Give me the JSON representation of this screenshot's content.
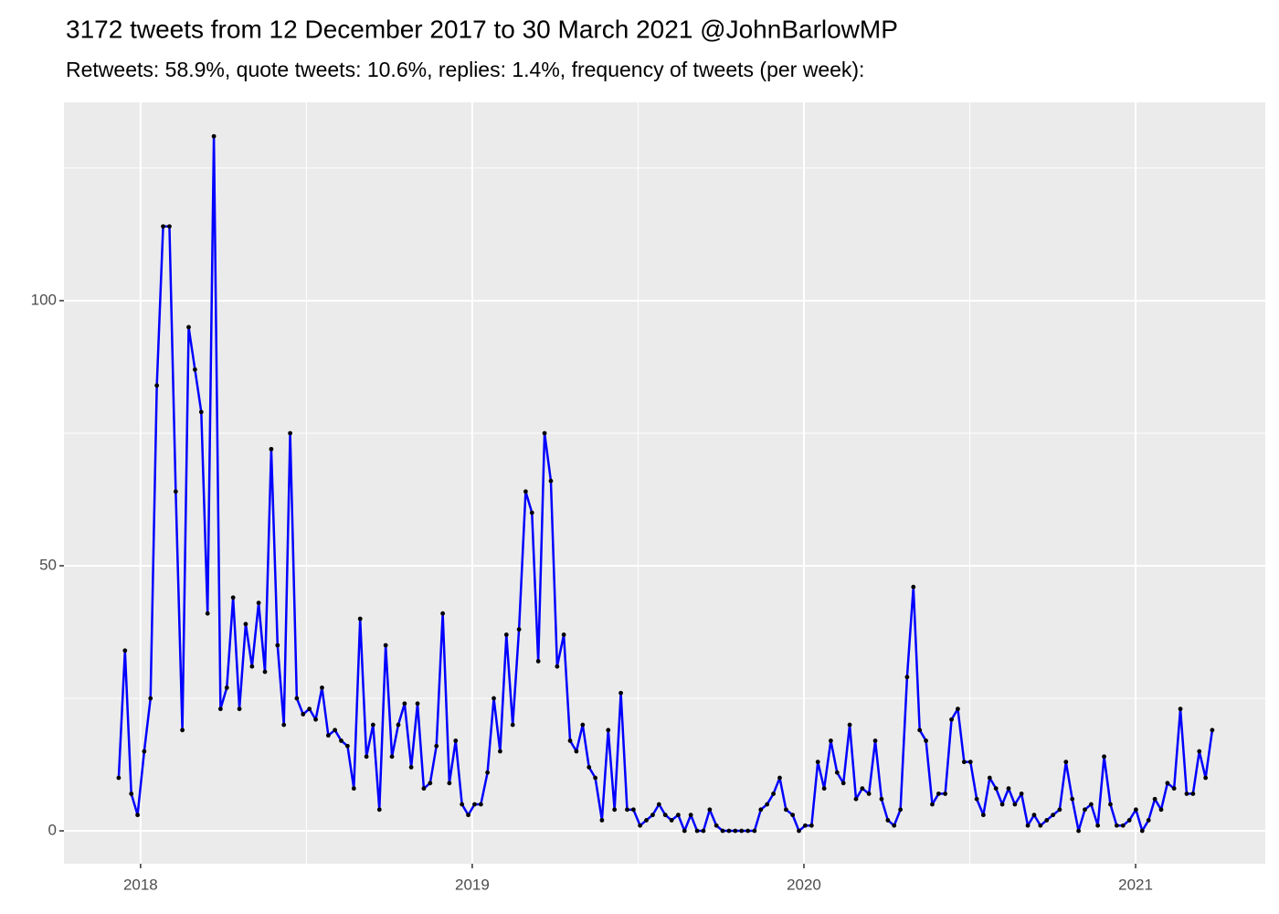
{
  "chart_data": {
    "type": "line",
    "title": "3172 tweets from 12 December 2017 to 30 March 2021 @JohnBarlowMP",
    "subtitle": "Retweets: 58.9%, quote tweets: 10.6%, replies: 1.4%, frequency of tweets (per week):",
    "x": [
      2017.934,
      2017.953,
      2017.972,
      2017.991,
      2018.011,
      2018.03,
      2018.049,
      2018.068,
      2018.087,
      2018.106,
      2018.126,
      2018.145,
      2018.164,
      2018.183,
      2018.202,
      2018.221,
      2018.241,
      2018.26,
      2018.279,
      2018.298,
      2018.317,
      2018.336,
      2018.356,
      2018.375,
      2018.394,
      2018.413,
      2018.432,
      2018.451,
      2018.471,
      2018.49,
      2018.509,
      2018.528,
      2018.547,
      2018.566,
      2018.586,
      2018.605,
      2018.624,
      2018.643,
      2018.662,
      2018.681,
      2018.701,
      2018.72,
      2018.739,
      2018.758,
      2018.777,
      2018.796,
      2018.816,
      2018.835,
      2018.854,
      2018.873,
      2018.892,
      2018.911,
      2018.931,
      2018.95,
      2018.969,
      2018.988,
      2019.007,
      2019.026,
      2019.046,
      2019.065,
      2019.084,
      2019.103,
      2019.122,
      2019.141,
      2019.161,
      2019.18,
      2019.199,
      2019.218,
      2019.237,
      2019.256,
      2019.276,
      2019.295,
      2019.314,
      2019.333,
      2019.352,
      2019.371,
      2019.391,
      2019.41,
      2019.429,
      2019.448,
      2019.467,
      2019.486,
      2019.506,
      2019.525,
      2019.544,
      2019.563,
      2019.582,
      2019.601,
      2019.621,
      2019.64,
      2019.659,
      2019.678,
      2019.697,
      2019.716,
      2019.736,
      2019.755,
      2019.774,
      2019.793,
      2019.812,
      2019.831,
      2019.851,
      2019.87,
      2019.889,
      2019.908,
      2019.927,
      2019.946,
      2019.966,
      2019.985,
      2020.004,
      2020.023,
      2020.042,
      2020.061,
      2020.081,
      2020.1,
      2020.119,
      2020.138,
      2020.157,
      2020.176,
      2020.196,
      2020.215,
      2020.234,
      2020.253,
      2020.272,
      2020.291,
      2020.311,
      2020.33,
      2020.349,
      2020.368,
      2020.387,
      2020.406,
      2020.426,
      2020.445,
      2020.464,
      2020.483,
      2020.502,
      2020.521,
      2020.541,
      2020.56,
      2020.579,
      2020.598,
      2020.617,
      2020.636,
      2020.656,
      2020.675,
      2020.694,
      2020.713,
      2020.732,
      2020.751,
      2020.771,
      2020.79,
      2020.809,
      2020.828,
      2020.847,
      2020.866,
      2020.886,
      2020.905,
      2020.924,
      2020.943,
      2020.962,
      2020.981,
      2021.001,
      2021.02,
      2021.039,
      2021.058,
      2021.077,
      2021.096,
      2021.116,
      2021.135,
      2021.154,
      2021.173,
      2021.192,
      2021.211,
      2021.231
    ],
    "values": [
      10,
      34,
      7,
      3,
      15,
      25,
      84,
      114,
      114,
      64,
      19,
      95,
      87,
      79,
      41,
      131,
      23,
      27,
      44,
      23,
      39,
      31,
      43,
      30,
      72,
      35,
      20,
      75,
      25,
      22,
      23,
      21,
      27,
      18,
      19,
      17,
      16,
      8,
      40,
      14,
      20,
      4,
      35,
      14,
      20,
      24,
      12,
      24,
      8,
      9,
      16,
      41,
      9,
      17,
      5,
      3,
      5,
      5,
      11,
      25,
      15,
      37,
      20,
      38,
      64,
      60,
      32,
      75,
      66,
      31,
      37,
      17,
      15,
      20,
      12,
      10,
      2,
      19,
      4,
      26,
      4,
      4,
      1,
      2,
      3,
      5,
      3,
      2,
      3,
      0,
      3,
      0,
      0,
      4,
      1,
      0,
      0,
      0,
      0,
      0,
      0,
      4,
      5,
      7,
      10,
      4,
      3,
      0,
      1,
      1,
      13,
      8,
      17,
      11,
      9,
      20,
      6,
      8,
      7,
      17,
      6,
      2,
      1,
      4,
      29,
      46,
      19,
      17,
      5,
      7,
      7,
      21,
      23,
      13,
      13,
      6,
      3,
      10,
      8,
      5,
      8,
      5,
      7,
      1,
      3,
      1,
      2,
      3,
      4,
      13,
      6,
      0,
      4,
      5,
      1,
      14,
      5,
      1,
      1,
      2,
      4,
      0,
      2,
      6,
      4,
      9,
      8,
      23,
      7,
      7,
      15,
      10,
      19
    ],
    "color": "#0000ff",
    "marker_color": "#000000",
    "xlim": [
      2017.769,
      2021.391
    ],
    "xticks": [
      2018,
      2019,
      2020,
      2021
    ],
    "ylim": [
      -6.2,
      137.4
    ],
    "yticks": [
      0,
      50,
      100
    ],
    "grid": true
  }
}
